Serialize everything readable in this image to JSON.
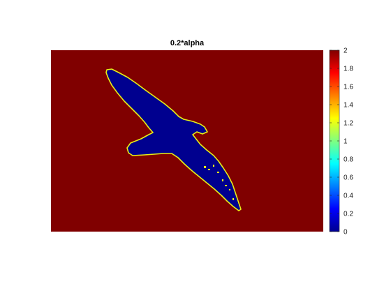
{
  "chart_data": {
    "type": "heatmap",
    "title": "0.2*alpha",
    "xlabel": "",
    "ylabel": "",
    "colormap": "jet",
    "background_value": 2,
    "shape_value": 0,
    "edge_value": 1.2,
    "background_color": "#800000",
    "shape_color": "#00008F",
    "edge_color": "#E6F016",
    "shape_description": "bird silhouette",
    "colorbar": {
      "limits": [
        0,
        2
      ],
      "ticks": [
        0,
        0.2,
        0.4,
        0.6,
        0.8,
        1,
        1.2,
        1.4,
        1.6,
        1.8,
        2
      ],
      "tick_labels": [
        "0",
        "0.2",
        "0.4",
        "0.6",
        "0.8",
        "1",
        "1.2",
        "1.4",
        "1.6",
        "1.8",
        "2"
      ]
    }
  }
}
